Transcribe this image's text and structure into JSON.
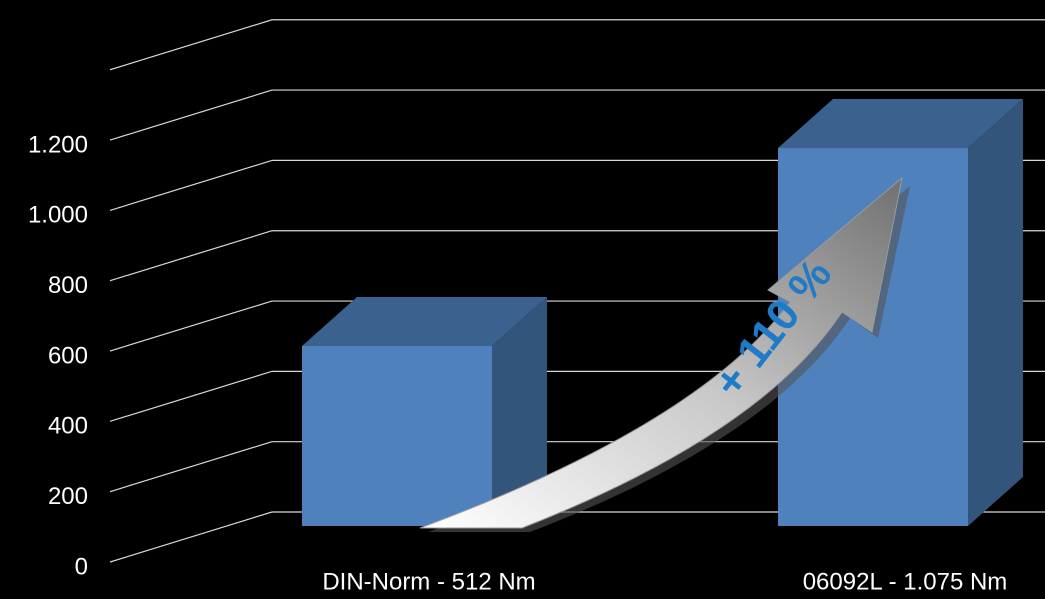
{
  "chart_data": {
    "type": "bar",
    "categories": [
      "DIN-Norm - 512 Nm",
      "06092L - 1.075 Nm"
    ],
    "values": [
      512,
      1075
    ],
    "color": "#4f81bd",
    "ylim": [
      0,
      1400
    ],
    "yticks": [
      0,
      200,
      400,
      600,
      800,
      {
        "value": 1000,
        "label": "1.000"
      },
      {
        "value": 1200,
        "label": "1.200"
      }
    ],
    "grid": true,
    "annotation": "+ 110 %"
  }
}
